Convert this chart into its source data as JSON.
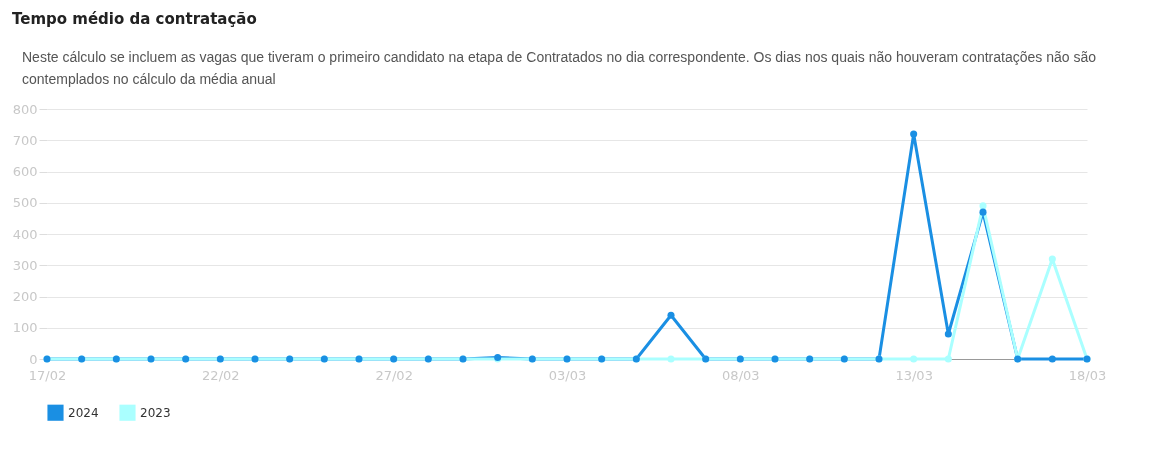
{
  "chart_data": {
    "type": "line",
    "title": "Tempo médio da contratação",
    "subtitle": "Neste cálculo se incluem as vagas que tiveram o primeiro candidato na etapa de Contratados no dia correspondente. Os dias nos quais não houveram contratações não são contemplados no cálculo da média anual",
    "x": [
      "2024-02-17",
      "2024-02-18",
      "2024-02-19",
      "2024-02-20",
      "2024-02-21",
      "2024-02-22",
      "2024-02-23",
      "2024-02-24",
      "2024-02-25",
      "2024-02-26",
      "2024-02-27",
      "2024-02-28",
      "2024-02-29",
      "2024-03-01",
      "2024-03-02",
      "2024-03-03",
      "2024-03-04",
      "2024-03-05",
      "2024-03-06",
      "2024-03-07",
      "2024-03-08",
      "2024-03-09",
      "2024-03-10",
      "2024-03-11",
      "2024-03-12",
      "2024-03-13",
      "2024-03-14",
      "2024-03-15",
      "2024-03-16",
      "2024-03-17",
      "2024-03-18"
    ],
    "series": [
      {
        "name": "2024",
        "color": "#1a8fe3",
        "values": [
          0,
          0,
          0,
          0,
          0,
          0,
          0,
          0,
          0,
          0,
          0,
          0,
          0,
          5,
          0,
          0,
          0,
          0,
          140,
          0,
          0,
          0,
          0,
          0,
          0,
          720,
          80,
          470,
          0,
          0,
          0
        ]
      },
      {
        "name": "2023",
        "color": "#aaffff",
        "values": [
          0,
          0,
          0,
          0,
          0,
          0,
          0,
          0,
          0,
          0,
          0,
          0,
          0,
          0,
          0,
          0,
          0,
          0,
          0,
          0,
          0,
          0,
          0,
          0,
          0,
          0,
          0,
          490,
          0,
          320,
          0
        ]
      }
    ],
    "xlim": [
      "2024-02-17",
      "2024-03-18"
    ],
    "xticks": [
      {
        "value": "2024-02-17",
        "label": "17/02"
      },
      {
        "value": "2024-02-22",
        "label": "22/02"
      },
      {
        "value": "2024-02-27",
        "label": "27/02"
      },
      {
        "value": "2024-03-03",
        "label": "03/03"
      },
      {
        "value": "2024-03-08",
        "label": "08/03"
      },
      {
        "value": "2024-03-13",
        "label": "13/03"
      },
      {
        "value": "2024-03-18",
        "label": "18/03"
      }
    ],
    "ylim": [
      0,
      800
    ],
    "yticks": [
      0,
      100,
      200,
      300,
      400,
      500,
      600,
      700,
      800
    ],
    "grid": "y",
    "legend": "bottom",
    "marker": "circle",
    "line_style": "solid"
  }
}
